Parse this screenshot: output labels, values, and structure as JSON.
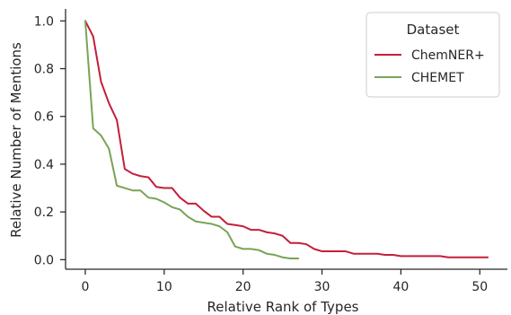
{
  "chart_data": {
    "type": "line",
    "xlabel": "Relative Rank of Types",
    "ylabel": "Relative Number of Mentions",
    "xlim": [
      -2.5,
      53.5
    ],
    "ylim": [
      -0.04,
      1.05
    ],
    "xticks": [
      0,
      10,
      20,
      30,
      40,
      50
    ],
    "yticks": [
      0.0,
      0.2,
      0.4,
      0.6,
      0.8,
      1.0
    ],
    "grid": false,
    "legend": {
      "title": "Dataset",
      "placement": "top-right"
    },
    "series": [
      {
        "name": "ChemNER+",
        "color": "#c41e3a",
        "x": [
          0,
          1,
          2,
          3,
          4,
          5,
          6,
          7,
          8,
          9,
          10,
          11,
          12,
          13,
          14,
          15,
          16,
          17,
          18,
          19,
          20,
          21,
          22,
          23,
          24,
          25,
          26,
          27,
          28,
          29,
          30,
          31,
          32,
          33,
          34,
          35,
          36,
          37,
          38,
          39,
          40,
          41,
          42,
          43,
          44,
          45,
          46,
          47,
          48,
          49,
          50,
          51
        ],
        "y": [
          1.0,
          0.935,
          0.745,
          0.655,
          0.585,
          0.38,
          0.36,
          0.35,
          0.345,
          0.305,
          0.3,
          0.3,
          0.26,
          0.235,
          0.235,
          0.205,
          0.18,
          0.18,
          0.15,
          0.145,
          0.14,
          0.125,
          0.125,
          0.115,
          0.11,
          0.1,
          0.07,
          0.07,
          0.065,
          0.045,
          0.035,
          0.035,
          0.035,
          0.035,
          0.025,
          0.025,
          0.025,
          0.025,
          0.02,
          0.02,
          0.015,
          0.015,
          0.015,
          0.015,
          0.015,
          0.015,
          0.01,
          0.01,
          0.01,
          0.01,
          0.01,
          0.01
        ]
      },
      {
        "name": "CHEMET",
        "color": "#7aa356",
        "x": [
          0,
          1,
          2,
          3,
          4,
          5,
          6,
          7,
          8,
          9,
          10,
          11,
          12,
          13,
          14,
          15,
          16,
          17,
          18,
          19,
          20,
          21,
          22,
          23,
          24,
          25,
          26,
          27
        ],
        "y": [
          1.0,
          0.55,
          0.52,
          0.465,
          0.31,
          0.3,
          0.29,
          0.29,
          0.26,
          0.255,
          0.24,
          0.22,
          0.21,
          0.18,
          0.16,
          0.155,
          0.15,
          0.14,
          0.115,
          0.055,
          0.045,
          0.045,
          0.04,
          0.025,
          0.02,
          0.01,
          0.005,
          0.005
        ]
      }
    ]
  }
}
